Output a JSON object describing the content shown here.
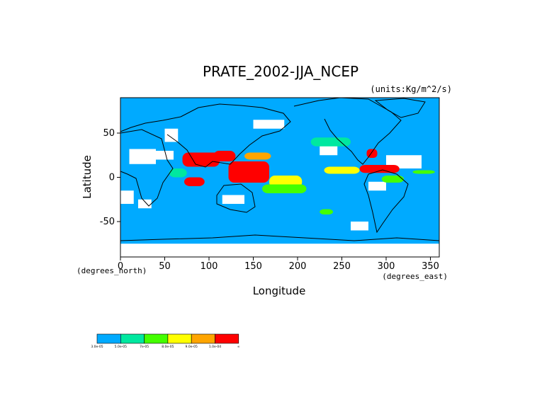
{
  "chart_data": {
    "type": "heatmap",
    "title": "PRATE_2002-JJA_NCEP",
    "units": "(units:Kg/m^2/s)",
    "xlabel": "Longitude",
    "ylabel": "Latitude",
    "x_unit_label": "(degrees_east)",
    "y_unit_label": "(degrees_north)",
    "xlim": [
      0,
      360
    ],
    "ylim": [
      -90,
      90
    ],
    "x_ticks": [
      0,
      50,
      100,
      150,
      200,
      250,
      300,
      350
    ],
    "y_ticks": [
      -50,
      0,
      50
    ],
    "colorbar": {
      "colors": [
        "#00aaff",
        "#00e8a0",
        "#44ff00",
        "#ffff00",
        "#ffa500",
        "#ff0000"
      ],
      "labels": [
        "3.0e-05",
        "5.0e-05",
        "7e-05",
        "8.0e-05",
        "9.0e-05",
        "1.0e-04",
        "∞"
      ]
    },
    "regions": [
      {
        "level": 0,
        "lon": [
          100,
          170
        ],
        "lat": [
          4,
          22
        ]
      },
      {
        "level": 5,
        "lon": [
          122,
          168
        ],
        "lat": [
          -6,
          18
        ]
      },
      {
        "level": 5,
        "lon": [
          105,
          130
        ],
        "lat": [
          18,
          30
        ]
      },
      {
        "level": 4,
        "lon": [
          140,
          170
        ],
        "lat": [
          20,
          28
        ]
      },
      {
        "level": 5,
        "lon": [
          70,
          112
        ],
        "lat": [
          12,
          28
        ]
      },
      {
        "level": 5,
        "lon": [
          72,
          95
        ],
        "lat": [
          -10,
          0
        ]
      },
      {
        "level": 3,
        "lon": [
          168,
          205
        ],
        "lat": [
          -12,
          2
        ]
      },
      {
        "level": 2,
        "lon": [
          160,
          210
        ],
        "lat": [
          -18,
          -8
        ]
      },
      {
        "level": 1,
        "lon": [
          55,
          75
        ],
        "lat": [
          0,
          10
        ]
      },
      {
        "level": 5,
        "lon": [
          270,
          315
        ],
        "lat": [
          5,
          14
        ]
      },
      {
        "level": 3,
        "lon": [
          230,
          270
        ],
        "lat": [
          4,
          12
        ]
      },
      {
        "level": 5,
        "lon": [
          278,
          290
        ],
        "lat": [
          22,
          32
        ]
      },
      {
        "level": 2,
        "lon": [
          295,
          320
        ],
        "lat": [
          -6,
          2
        ]
      },
      {
        "level": 2,
        "lon": [
          330,
          355
        ],
        "lat": [
          4,
          8
        ]
      },
      {
        "level": 1,
        "lon": [
          215,
          260
        ],
        "lat": [
          35,
          45
        ]
      },
      {
        "level": 2,
        "lon": [
          225,
          240
        ],
        "lat": [
          -42,
          -36
        ]
      }
    ],
    "dry": [
      {
        "lon": [
          10,
          40
        ],
        "lat": [
          15,
          32
        ]
      },
      {
        "lon": [
          40,
          60
        ],
        "lat": [
          20,
          30
        ]
      },
      {
        "lon": [
          50,
          65
        ],
        "lat": [
          40,
          55
        ]
      },
      {
        "lon": [
          0,
          15
        ],
        "lat": [
          -30,
          -15
        ]
      },
      {
        "lon": [
          20,
          35
        ],
        "lat": [
          -35,
          -25
        ]
      },
      {
        "lon": [
          115,
          140
        ],
        "lat": [
          -30,
          -20
        ]
      },
      {
        "lon": [
          225,
          245
        ],
        "lat": [
          25,
          40
        ]
      },
      {
        "lon": [
          280,
          300
        ],
        "lat": [
          -15,
          -5
        ]
      },
      {
        "lon": [
          300,
          340
        ],
        "lat": [
          10,
          25
        ]
      },
      {
        "lon": [
          0,
          360
        ],
        "lat": [
          -90,
          -75
        ]
      },
      {
        "lon": [
          150,
          185
        ],
        "lat": [
          55,
          65
        ]
      },
      {
        "lon": [
          260,
          280
        ],
        "lat": [
          -60,
          -50
        ]
      }
    ]
  }
}
